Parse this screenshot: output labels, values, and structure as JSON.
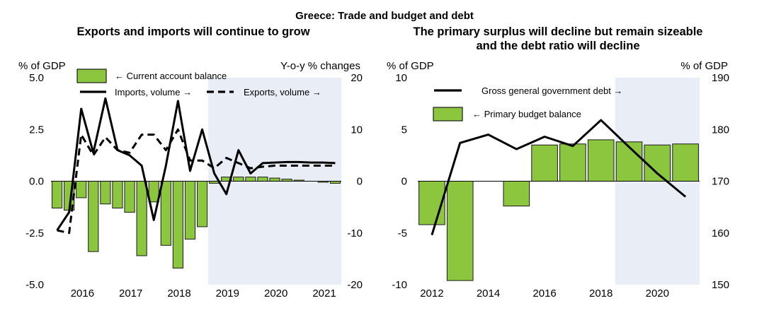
{
  "figure_title": "Greece: Trade and budget and debt",
  "colors": {
    "bar_fill": "#8cc63f",
    "bar_stroke": "#1a1a1a",
    "line": "#000000",
    "projection_shade": "#e9edf6"
  },
  "chart_data": [
    {
      "type": "bar",
      "title": "Exports and imports will continue to grow",
      "ylabel": "% of GDP",
      "y2label": "Y-o-y % changes",
      "ylim": [
        -5.0,
        5.0
      ],
      "y2lim": [
        -20,
        20
      ],
      "yticks": [
        "5.0",
        "2.5",
        "0.0",
        "-2.5",
        "-5.0"
      ],
      "y2ticks": [
        "20",
        "10",
        "0",
        "-10",
        "-20"
      ],
      "xtick_labels": [
        "2016",
        "2017",
        "2018",
        "2019",
        "2020",
        "2021"
      ],
      "projection_from": "2019Q1",
      "grid": false,
      "categories": [
        "2015Q4",
        "2016Q1",
        "2016Q2",
        "2016Q3",
        "2016Q4",
        "2017Q1",
        "2017Q2",
        "2017Q3",
        "2017Q4",
        "2018Q1",
        "2018Q2",
        "2018Q3",
        "2018Q4",
        "2019Q1",
        "2019Q2",
        "2019Q3",
        "2019Q4",
        "2020Q1",
        "2020Q2",
        "2020Q3",
        "2020Q4",
        "2021Q1",
        "2021Q2",
        "2021Q3"
      ],
      "series": [
        {
          "name": "Current account balance",
          "kind": "bar",
          "axis": "left",
          "legend_label": "← Current account balance",
          "values": [
            -1.3,
            -1.4,
            -0.8,
            -3.4,
            -1.1,
            -1.3,
            -1.5,
            -3.6,
            -1.0,
            -3.1,
            -4.2,
            -2.8,
            -2.2,
            -0.1,
            0.2,
            0.2,
            0.2,
            0.2,
            0.15,
            0.1,
            0.05,
            0.0,
            -0.05,
            -0.1
          ]
        },
        {
          "name": "Imports, volume",
          "kind": "line",
          "style": "solid",
          "axis": "right",
          "legend_label": "Imports, volume →",
          "x": [
            "2015Q4",
            "2016Q1",
            "2016Q2",
            "2016Q3",
            "2016Q4",
            "2017Q1",
            "2017Q2",
            "2017Q3",
            "2017Q4",
            "2018Q1",
            "2018Q2",
            "2018Q3",
            "2018Q4",
            "2019Q1",
            "2019Q2",
            "2019Q3",
            "2019Q4",
            "2020Q1",
            "2020Q2",
            "2020Q3",
            "2020Q4",
            "2021Q1",
            "2021Q2",
            "2021Q3"
          ],
          "values": [
            -9.5,
            -6.0,
            14.0,
            5.5,
            16.0,
            6.0,
            5.0,
            3.0,
            -7.5,
            3.0,
            15.5,
            2.0,
            10.0,
            1.5,
            -2.5,
            6.0,
            1.5,
            3.5,
            3.6,
            3.7,
            3.7,
            3.6,
            3.6,
            3.5
          ]
        },
        {
          "name": "Exports, volume",
          "kind": "line",
          "style": "dashed",
          "axis": "right",
          "legend_label": "Exports, volume →",
          "x": [
            "2015Q4",
            "2016Q1",
            "2016Q2",
            "2016Q3",
            "2016Q4",
            "2017Q1",
            "2017Q2",
            "2017Q3",
            "2017Q4",
            "2018Q1",
            "2018Q2",
            "2018Q3",
            "2018Q4",
            "2019Q1",
            "2019Q2",
            "2019Q3",
            "2019Q4",
            "2020Q1",
            "2020Q2",
            "2020Q3",
            "2020Q4",
            "2021Q1",
            "2021Q2",
            "2021Q3"
          ],
          "values": [
            -9.5,
            -10.0,
            9.0,
            5.0,
            8.5,
            6.0,
            5.5,
            9.0,
            9.0,
            6.0,
            10.0,
            4.0,
            4.0,
            2.5,
            4.5,
            3.5,
            2.5,
            2.8,
            3.0,
            3.0,
            3.0,
            3.0,
            3.0,
            3.0
          ]
        }
      ]
    },
    {
      "type": "bar",
      "title_lines": [
        "The primary surplus will decline but remain sizeable",
        "and the debt ratio will decline"
      ],
      "ylabel": "% of GDP",
      "y2label": "% of GDP",
      "ylim": [
        -10,
        10
      ],
      "y2lim": [
        150,
        190
      ],
      "yticks": [
        "10",
        "5",
        "0",
        "-5",
        "-10"
      ],
      "y2ticks": [
        "190",
        "180",
        "170",
        "160",
        "150"
      ],
      "xtick_labels": [
        "2012",
        "2014",
        "2016",
        "2018",
        "2020"
      ],
      "projection_from": 2019,
      "grid": false,
      "categories": [
        2012,
        2013,
        2014,
        2015,
        2016,
        2017,
        2018,
        2019,
        2020,
        2021
      ],
      "series": [
        {
          "name": "Primary budget balance",
          "kind": "bar",
          "axis": "left",
          "legend_label": "← Primary budget balance",
          "values": [
            -4.2,
            -9.6,
            0.0,
            -2.4,
            3.5,
            3.6,
            4.0,
            3.8,
            3.5,
            3.6
          ]
        },
        {
          "name": "Gross general government debt",
          "kind": "line",
          "style": "solid",
          "axis": "right",
          "legend_label": "Gross general government debt →",
          "x": [
            2012,
            2013,
            2014,
            2015,
            2016,
            2017,
            2018,
            2019,
            2020,
            2021
          ],
          "values": [
            159.6,
            177.4,
            179.0,
            176.2,
            178.6,
            176.8,
            181.8,
            176.6,
            171.5,
            167.0
          ]
        }
      ]
    }
  ]
}
